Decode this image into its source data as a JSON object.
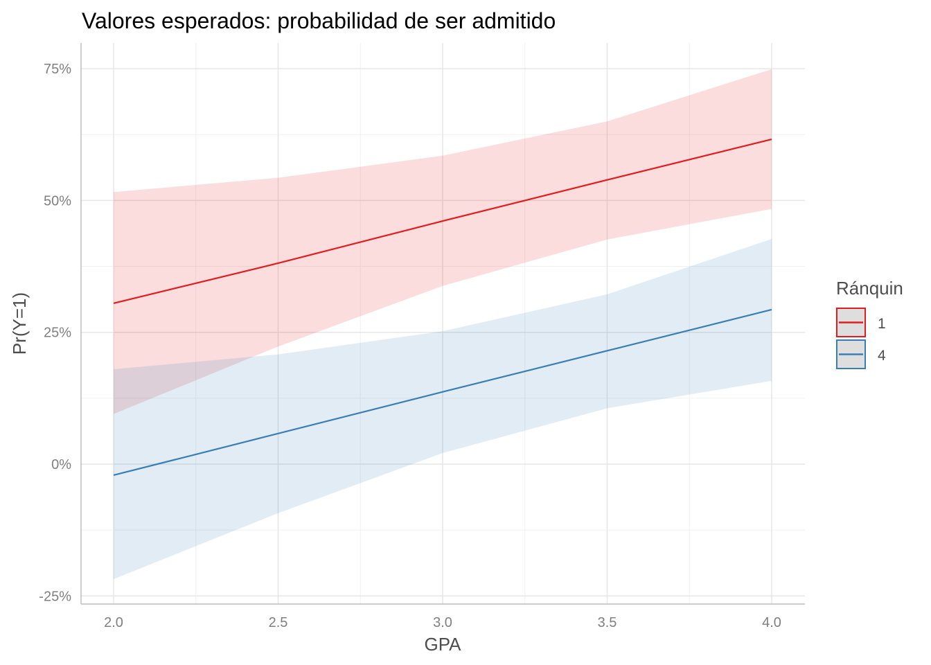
{
  "chart_data": {
    "type": "line",
    "title": "Valores esperados: probabilidad de ser admitido",
    "xlabel": "GPA",
    "ylabel": "Pr(Y=1)",
    "xlim": [
      1.9,
      4.1
    ],
    "ylim": [
      -27,
      80
    ],
    "x_ticks": [
      "2.0",
      "2.5",
      "3.0",
      "3.5",
      "4.0"
    ],
    "y_ticks": [
      "-25%",
      "0%",
      "25%",
      "50%",
      "75%"
    ],
    "grid": true,
    "legend": {
      "title": "Ránquin",
      "position": "right"
    },
    "x": [
      2.0,
      2.5,
      3.0,
      3.5,
      4.0
    ],
    "series": [
      {
        "name": "1",
        "color": "#E41A1C",
        "values": [
          30.5,
          38.1,
          46.1,
          53.9,
          61.6
        ],
        "lower": [
          9.5,
          22.3,
          33.8,
          42.6,
          48.4
        ],
        "upper": [
          51.6,
          54.3,
          58.5,
          65.0,
          74.9
        ]
      },
      {
        "name": "4",
        "color": "#377EB8",
        "values": [
          -2.1,
          5.8,
          13.7,
          21.5,
          29.3
        ],
        "lower": [
          -21.8,
          -9.3,
          2.1,
          10.6,
          15.8
        ],
        "upper": [
          18.0,
          20.8,
          25.2,
          32.2,
          42.7
        ]
      }
    ]
  }
}
